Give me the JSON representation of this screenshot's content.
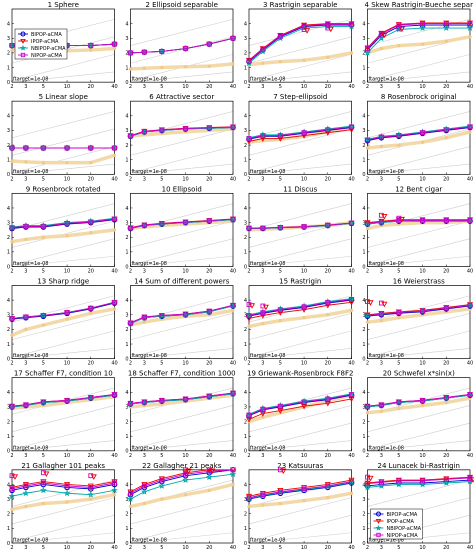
{
  "chart_data": {
    "type": "line",
    "layout": {
      "rows": 6,
      "cols": 4
    },
    "x_ticks": [
      "2",
      "3",
      "5",
      "10",
      "20",
      "40"
    ],
    "x_dims": [
      2,
      3,
      5,
      10,
      20,
      40
    ],
    "y_ticks": [
      "0",
      "1",
      "2",
      "3",
      "4"
    ],
    "ylim": [
      0,
      4
    ],
    "ftarget_label": "ftarget=1e-08",
    "series_styles": [
      {
        "name": "BIPOP-aCMA",
        "color": "#0000cc",
        "marker": "circle"
      },
      {
        "name": "IPOP-aCMA",
        "color": "#ee0000",
        "marker": "triangle-down"
      },
      {
        "name": "NBIPOP-aCMA",
        "color": "#00aaaa",
        "marker": "star"
      },
      {
        "name": "NIPOP-aCMA",
        "color": "#cc00cc",
        "marker": "square"
      }
    ],
    "reference_color": "#f4d9a8",
    "legends_on": [
      0,
      23
    ],
    "panels": [
      {
        "title": "1 Sphere",
        "ref": [
          2.2,
          2.15,
          2.15,
          2.15,
          2.2,
          2.3
        ],
        "base": [
          2.5,
          2.5,
          2.5,
          2.5,
          2.5,
          2.6
        ],
        "dy": [
          0,
          0,
          0,
          0
        ],
        "extras": []
      },
      {
        "title": "2 Ellipsoid separable",
        "ref": [
          0.9,
          0.95,
          1.0,
          1.05,
          1.1,
          1.25
        ],
        "base": [
          2.0,
          2.05,
          2.1,
          2.3,
          2.6,
          3.0
        ],
        "dy": [
          0,
          0,
          0,
          0
        ],
        "extras": []
      },
      {
        "title": "3 Rastrigin separable",
        "ref": [
          1.2,
          1.3,
          1.4,
          1.5,
          1.7,
          2.0
        ],
        "base": [
          1.4,
          2.2,
          3.1,
          3.8,
          3.9,
          3.9
        ],
        "dy": [
          0,
          0.1,
          -0.1,
          0.05
        ],
        "extras": [
          [
            3,
            3.6
          ],
          [
            4,
            3.7
          ]
        ]
      },
      {
        "title": "4 Skew Rastrigin-Bueche separ",
        "ref": [
          2.0,
          2.3,
          2.5,
          2.6,
          2.8,
          3.1
        ],
        "base": [
          2.2,
          3.2,
          3.8,
          3.9,
          3.9,
          3.9
        ],
        "dy": [
          0,
          0.15,
          -0.2,
          0.1
        ],
        "extras": [
          [
            1,
            3.3
          ],
          [
            2,
            3.7
          ]
        ]
      },
      {
        "title": "5 Linear slope",
        "ref": [
          0.9,
          0.85,
          0.8,
          0.8,
          0.8,
          1.3
        ],
        "base": [
          1.8,
          1.8,
          1.8,
          1.8,
          1.8,
          1.8
        ],
        "dy": [
          0,
          0,
          0,
          0
        ],
        "extras": []
      },
      {
        "title": "6 Attractive sector",
        "ref": [
          2.6,
          2.7,
          2.8,
          2.9,
          3.0,
          3.1
        ],
        "base": [
          2.6,
          2.9,
          3.0,
          3.1,
          3.15,
          3.2
        ],
        "dy": [
          0,
          0.05,
          0,
          0.03
        ],
        "extras": []
      },
      {
        "title": "7 Step-ellipsoid",
        "ref": [
          2.2,
          2.3,
          2.4,
          2.6,
          2.9,
          3.2
        ],
        "base": [
          2.4,
          2.6,
          2.6,
          2.8,
          3.0,
          3.2
        ],
        "dy": [
          0,
          -0.15,
          0.1,
          0.05
        ],
        "extras": []
      },
      {
        "title": "8 Rosenbrock original",
        "ref": [
          1.8,
          1.9,
          2.0,
          2.2,
          2.5,
          2.9
        ],
        "base": [
          2.3,
          2.5,
          2.6,
          2.8,
          3.0,
          3.2
        ],
        "dy": [
          0,
          0.05,
          0.1,
          0.05
        ],
        "extras": []
      },
      {
        "title": "9 Rosenbrock rotated",
        "ref": [
          1.7,
          1.85,
          2.0,
          2.1,
          2.3,
          2.5
        ],
        "base": [
          2.6,
          2.7,
          2.7,
          2.9,
          3.0,
          3.2
        ],
        "dy": [
          0,
          0.05,
          0.1,
          0.05
        ],
        "extras": []
      },
      {
        "title": "10 Ellipsoid",
        "ref": [
          2.6,
          2.7,
          2.8,
          2.9,
          3.0,
          3.1
        ],
        "base": [
          2.6,
          2.8,
          2.9,
          3.0,
          3.1,
          3.2
        ],
        "dy": [
          0,
          0.05,
          0,
          0.03
        ],
        "extras": []
      },
      {
        "title": "11 Discus",
        "ref": [
          2.5,
          2.55,
          2.6,
          2.7,
          2.8,
          3.0
        ],
        "base": [
          2.6,
          2.6,
          2.65,
          2.7,
          2.8,
          2.95
        ],
        "dy": [
          0,
          0.03,
          0,
          0.02
        ],
        "extras": []
      },
      {
        "title": "12 Bent cigar",
        "ref": [
          2.6,
          2.8,
          2.9,
          3.0,
          3.0,
          3.1
        ],
        "base": [
          2.9,
          3.0,
          3.1,
          3.1,
          3.1,
          3.1
        ],
        "dy": [
          0,
          0.1,
          0,
          0.05
        ],
        "extras": [
          [
            1,
            3.5
          ],
          [
            2,
            3.3
          ]
        ]
      },
      {
        "title": "13 Sharp ridge",
        "ref": [
          1.6,
          2.0,
          2.3,
          2.7,
          3.1,
          3.4
        ],
        "base": [
          2.7,
          2.8,
          2.9,
          3.1,
          3.4,
          3.8
        ],
        "dy": [
          0,
          0.05,
          0.05,
          0.05
        ],
        "extras": []
      },
      {
        "title": "14 Sum of different powers",
        "ref": [
          2.3,
          2.5,
          2.7,
          2.9,
          3.0,
          3.3
        ],
        "base": [
          2.4,
          2.8,
          2.9,
          3.0,
          3.2,
          3.6
        ],
        "dy": [
          0,
          0.05,
          0,
          0.05
        ],
        "extras": []
      },
      {
        "title": "15 Rastrigin",
        "ref": [
          2.2,
          2.4,
          2.6,
          2.8,
          3.0,
          3.3
        ],
        "base": [
          2.9,
          3.1,
          3.3,
          3.5,
          3.8,
          4.0
        ],
        "dy": [
          0,
          -0.15,
          0.1,
          0.05
        ],
        "extras": [
          [
            0,
            3.7
          ],
          [
            1,
            3.6
          ]
        ]
      },
      {
        "title": "16 Weierstrass",
        "ref": [
          2.5,
          2.6,
          2.8,
          3.0,
          3.2,
          3.4
        ],
        "base": [
          2.9,
          3.0,
          3.1,
          3.2,
          3.4,
          3.6
        ],
        "dy": [
          0,
          0.1,
          0.05,
          0.05
        ],
        "extras": [
          [
            0,
            3.9
          ],
          [
            1,
            3.8
          ]
        ]
      },
      {
        "title": "17 Schaffer F7, condition 10",
        "ref": [
          2.9,
          3.0,
          3.1,
          3.3,
          3.5,
          3.7
        ],
        "base": [
          3.0,
          3.1,
          3.3,
          3.4,
          3.6,
          3.8
        ],
        "dy": [
          0,
          0.05,
          0,
          0.05
        ],
        "extras": []
      },
      {
        "title": "18 Schaffer F7, condition 1000",
        "ref": [
          3.0,
          3.1,
          3.2,
          3.4,
          3.6,
          3.8
        ],
        "base": [
          3.2,
          3.3,
          3.4,
          3.5,
          3.7,
          3.9
        ],
        "dy": [
          0,
          0.05,
          0,
          0.05
        ],
        "extras": []
      },
      {
        "title": "19 Griewank-Rosenbrock F8F2",
        "ref": [
          2.0,
          2.3,
          2.6,
          3.0,
          3.4,
          3.8
        ],
        "base": [
          2.4,
          2.8,
          3.0,
          3.3,
          3.5,
          3.8
        ],
        "dy": [
          0,
          -0.25,
          0.1,
          0.05
        ],
        "extras": []
      },
      {
        "title": "20 Schwefel x*sin(x)",
        "ref": [
          2.6,
          2.7,
          2.9,
          3.1,
          3.3,
          3.6
        ],
        "base": [
          3.0,
          3.1,
          3.3,
          3.4,
          3.6,
          3.8
        ],
        "dy": [
          0,
          0.05,
          0,
          0.05
        ],
        "extras": []
      },
      {
        "title": "21 Gallagher 101 peaks",
        "ref": [
          2.3,
          2.5,
          2.7,
          2.8,
          3.0,
          3.3
        ],
        "base": [
          3.6,
          3.8,
          4.0,
          3.8,
          3.7,
          4.0
        ],
        "dy": [
          0,
          0.2,
          -0.4,
          0.1
        ],
        "extras": [
          [
            0,
            4.6
          ],
          [
            2,
            4.8
          ],
          [
            4,
            4.6
          ]
        ]
      },
      {
        "title": "22 Gallagher 21 peaks",
        "ref": [
          2.5,
          2.7,
          3.0,
          3.3,
          3.6,
          4.0
        ],
        "base": [
          3.3,
          3.8,
          4.2,
          4.6,
          4.8,
          5.0
        ],
        "dy": [
          0,
          0.2,
          -0.3,
          0.1
        ],
        "extras": [
          [
            3,
            5.0
          ],
          [
            4,
            5.2
          ]
        ]
      },
      {
        "title": "23 Katsuuras",
        "ref": [
          2.5,
          2.6,
          2.7,
          2.9,
          3.1,
          3.4
        ],
        "base": [
          3.0,
          3.2,
          3.4,
          3.6,
          3.8,
          4.1
        ],
        "dy": [
          0,
          0.2,
          0.05,
          0.1
        ],
        "extras": [
          [
            2,
            5.3
          ]
        ]
      },
      {
        "title": "24 Lunacek bi-Rastrigin",
        "ref": [],
        "base": [
          3.9,
          4.0,
          4.1,
          4.1,
          4.2,
          4.3
        ],
        "dy": [
          0,
          0.2,
          -0.1,
          0.15
        ],
        "extras": [
          [
            0,
            4.5
          ],
          [
            5,
            4.4
          ]
        ]
      }
    ]
  }
}
